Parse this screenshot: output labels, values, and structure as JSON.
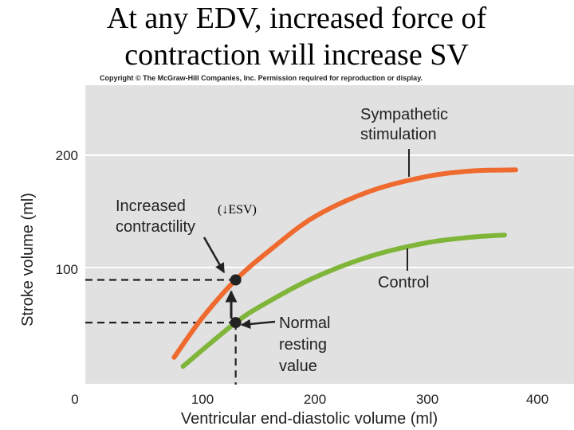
{
  "title": {
    "line1": "At any EDV, increased force of",
    "line2": "contraction will increase SV"
  },
  "copyright": "Copyright © The McGraw-Hill Companies, Inc. Permission required for reproduction or display.",
  "colors": {
    "panel": "#e1e1e1",
    "sympathetic": "#ee6a2e",
    "control": "#7fb539",
    "marker": "#222222"
  },
  "chart_data": {
    "type": "line",
    "xlabel": "Ventricular end-diastolic volume (ml)",
    "ylabel": "Stroke volume (ml)",
    "xlim": [
      0,
      410
    ],
    "ylim": [
      0,
      260
    ],
    "xticks": [
      "0",
      "100",
      "200",
      "300",
      "400"
    ],
    "yticks": [
      "100",
      "200"
    ],
    "series": [
      {
        "name": "Sympathetic stimulation",
        "label_line1": "Sympathetic",
        "label_line2": "stimulation",
        "x": [
          75,
          100,
          130,
          160,
          200,
          250,
          300,
          340,
          380
        ],
        "y": [
          20,
          55,
          89,
          115,
          145,
          168,
          181,
          186,
          187
        ]
      },
      {
        "name": "Control",
        "label_line1": "Control",
        "x": [
          83,
          130,
          160,
          200,
          250,
          300,
          340,
          370
        ],
        "y": [
          12,
          51,
          70,
          91,
          110,
          122,
          127,
          129
        ]
      }
    ],
    "points": [
      {
        "name": "increased-contractility-point",
        "x": 130,
        "y": 89
      },
      {
        "name": "normal-resting-point",
        "x": 130,
        "y": 51
      }
    ],
    "annotations": {
      "increased_line1": "Increased",
      "increased_line2": "contractility",
      "esv_note": "(↓ESV)",
      "normal_line1": "Normal",
      "normal_line2": "resting",
      "normal_line3": "value"
    }
  }
}
